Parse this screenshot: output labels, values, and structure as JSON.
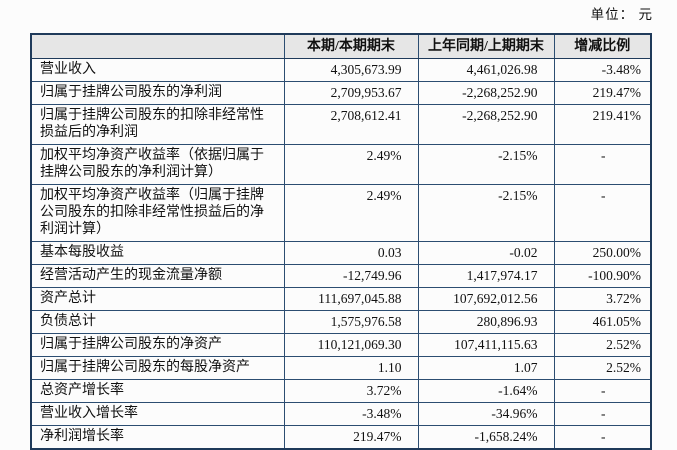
{
  "unit_label": "单位： 元",
  "colors": {
    "border": "#2c4d71",
    "border_outer": "#1f3a5a",
    "header_bg": "#e6e6e6",
    "text": "#111111"
  },
  "table": {
    "columns": [
      "",
      "本期/本期期末",
      "上年同期/上期期末",
      "增减比例"
    ],
    "rows": [
      {
        "label": "营业收入",
        "current": "4,305,673.99",
        "prior": "4,461,026.98",
        "change": "-3.48%"
      },
      {
        "label": "归属于挂牌公司股东的净利润",
        "current": "2,709,953.67",
        "prior": "-2,268,252.90",
        "change": "219.47%"
      },
      {
        "label": "归属于挂牌公司股东的扣除非经常性损益后的净利润",
        "current": "2,708,612.41",
        "prior": "-2,268,252.90",
        "change": "219.41%"
      },
      {
        "label": "加权平均净资产收益率（依据归属于挂牌公司股东的净利润计算）",
        "current": "2.49%",
        "prior": "-2.15%",
        "change": "-"
      },
      {
        "label": "加权平均净资产收益率（归属于挂牌公司股东的扣除非经常性损益后的净利润计算）",
        "current": "2.49%",
        "prior": "-2.15%",
        "change": "-"
      },
      {
        "label": "基本每股收益",
        "current": "0.03",
        "prior": "-0.02",
        "change": "250.00%"
      },
      {
        "label": "经营活动产生的现金流量净额",
        "current": "-12,749.96",
        "prior": "1,417,974.17",
        "change": "-100.90%"
      },
      {
        "label": "资产总计",
        "current": "111,697,045.88",
        "prior": "107,692,012.56",
        "change": "3.72%"
      },
      {
        "label": "负债总计",
        "current": "1,575,976.58",
        "prior": "280,896.93",
        "change": "461.05%"
      },
      {
        "label": "归属于挂牌公司股东的净资产",
        "current": "110,121,069.30",
        "prior": "107,411,115.63",
        "change": "2.52%"
      },
      {
        "label": "归属于挂牌公司股东的每股净资产",
        "current": "1.10",
        "prior": "1.07",
        "change": "2.52%"
      },
      {
        "label": "总资产增长率",
        "current": "3.72%",
        "prior": "-1.64%",
        "change": "-"
      },
      {
        "label": "营业收入增长率",
        "current": "-3.48%",
        "prior": "-34.96%",
        "change": "-"
      },
      {
        "label": "净利润增长率",
        "current": "219.47%",
        "prior": "-1,658.24%",
        "change": "-"
      }
    ]
  }
}
